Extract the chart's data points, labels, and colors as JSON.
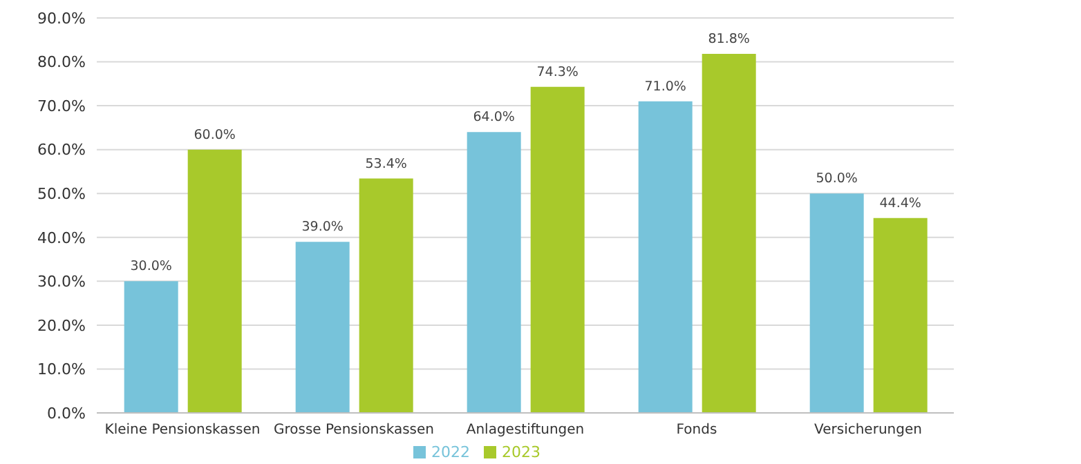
{
  "chart_data": {
    "type": "bar",
    "categories": [
      "Kleine Pensionskassen",
      "Grosse Pensionskassen",
      "Anlagestiftungen",
      "Fonds",
      "Versicherungen"
    ],
    "series": [
      {
        "name": "2022",
        "color": "#77c3da",
        "values": [
          30.0,
          39.0,
          64.0,
          71.0,
          50.0
        ],
        "value_labels": [
          "30.0%",
          "39.0%",
          "64.0%",
          "71.0%",
          "50.0%"
        ]
      },
      {
        "name": "2023",
        "color": "#a8c92b",
        "values": [
          60.0,
          53.4,
          74.3,
          81.8,
          44.4
        ],
        "value_labels": [
          "60.0%",
          "53.4%",
          "74.3%",
          "81.8%",
          "44.4%"
        ]
      }
    ],
    "ylim": [
      0,
      90
    ],
    "yticks": [
      {
        "value": 0,
        "label": "0.0%"
      },
      {
        "value": 10,
        "label": "10.0%"
      },
      {
        "value": 20,
        "label": "20.0%"
      },
      {
        "value": 30,
        "label": "30.0%"
      },
      {
        "value": 40,
        "label": "40.0%"
      },
      {
        "value": 50,
        "label": "50.0%"
      },
      {
        "value": 60,
        "label": "60.0%"
      },
      {
        "value": 70,
        "label": "70.0%"
      },
      {
        "value": 80,
        "label": "80.0%"
      },
      {
        "value": 90,
        "label": "90.0%"
      }
    ],
    "grid": "y",
    "legend": "bottom"
  }
}
